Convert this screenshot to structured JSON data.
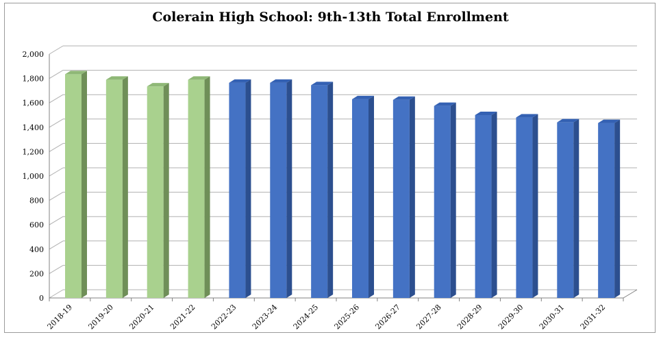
{
  "chart_data": {
    "type": "bar",
    "title": "Colerain High School: 9th-13th Total Enrollment",
    "xlabel": "",
    "ylabel": "",
    "categories": [
      "2018-19",
      "2019-20",
      "2020-21",
      "2021-22",
      "2022-23",
      "2023-24",
      "2024-25",
      "2025-26",
      "2026-27",
      "2027-28",
      "2028-29",
      "2029-30",
      "2030-31",
      "2031-32"
    ],
    "values": [
      1835,
      1790,
      1735,
      1790,
      1765,
      1765,
      1745,
      1630,
      1625,
      1575,
      1500,
      1480,
      1440,
      1435
    ],
    "value_kind": [
      "actual",
      "actual",
      "actual",
      "actual",
      "projected",
      "projected",
      "projected",
      "projected",
      "projected",
      "projected",
      "projected",
      "projected",
      "projected",
      "projected"
    ],
    "ylim": [
      0,
      2000
    ],
    "yticks": [
      0,
      200,
      400,
      600,
      800,
      1000,
      1200,
      1400,
      1600,
      1800,
      2000
    ],
    "ytick_labels": [
      "0",
      "200",
      "400",
      "600",
      "800",
      "1,000",
      "1,200",
      "1,400",
      "1,600",
      "1,800",
      "2,000"
    ],
    "grid": true,
    "legend": "none",
    "colors": {
      "actual": "#a9d18e",
      "actual_side": "#6f8f58",
      "actual_top": "#8fb877",
      "projected": "#4472c4",
      "projected_side": "#2c4f8f",
      "projected_top": "#3461b3",
      "grid": "#b0b0b0",
      "axis": "#808080"
    }
  }
}
